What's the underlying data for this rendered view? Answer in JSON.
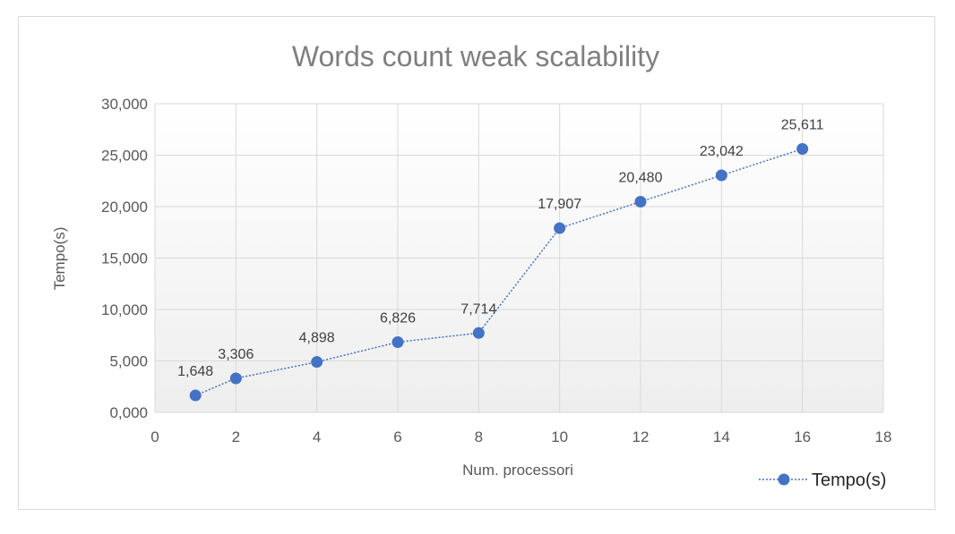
{
  "chart_data": {
    "type": "scatter",
    "title": "Words count weak scalability",
    "xlabel": "Num. processori",
    "ylabel": "Tempo(s)",
    "xlim": [
      0,
      18
    ],
    "ylim": [
      0,
      30000
    ],
    "x_ticks": [
      0,
      2,
      4,
      6,
      8,
      10,
      12,
      14,
      16,
      18
    ],
    "x_tick_labels": [
      "0",
      "2",
      "4",
      "6",
      "8",
      "10",
      "12",
      "14",
      "16",
      "18"
    ],
    "y_ticks": [
      0,
      5000,
      10000,
      15000,
      20000,
      25000,
      30000
    ],
    "y_tick_labels": [
      "0,000",
      "5,000",
      "10,000",
      "15,000",
      "20,000",
      "25,000",
      "30,000"
    ],
    "grid": true,
    "legend_position": "bottom-right",
    "series": [
      {
        "name": "Tempo(s)",
        "color": "#4472c4",
        "line_style": "dotted",
        "x": [
          1,
          2,
          4,
          6,
          8,
          10,
          12,
          14,
          16
        ],
        "y": [
          1648,
          3306,
          4898,
          6826,
          7714,
          17907,
          20480,
          23042,
          25611
        ],
        "labels": [
          "1,648",
          "3,306",
          "4,898",
          "6,826",
          "7,714",
          "17,907",
          "20,480",
          "23,042",
          "25,611"
        ]
      }
    ]
  }
}
